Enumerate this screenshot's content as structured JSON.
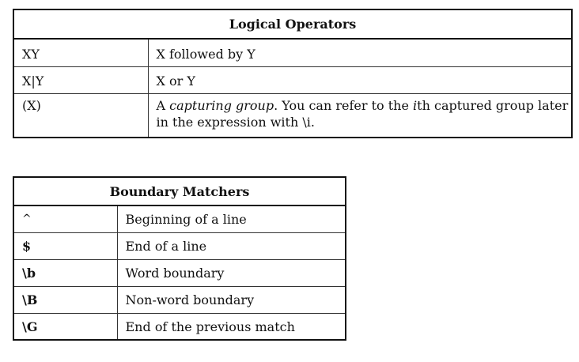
{
  "logical_operators": {
    "title": "Logical Operators",
    "rows": [
      {
        "construct": "XY",
        "description": "X followed by Y"
      },
      {
        "construct": "X|Y",
        "description": "X or Y"
      },
      {
        "construct": "(X)",
        "description_parts": {
          "prefix": "A ",
          "emphasis": "capturing group",
          "middle": ". You can refer to the ",
          "ith_i": "i",
          "rest": "th captured group later in the expression with \\i."
        }
      }
    ]
  },
  "boundary_matchers": {
    "title": "Boundary Matchers",
    "rows": [
      {
        "construct": "^",
        "description": "Beginning of a line"
      },
      {
        "construct": "$",
        "description": "End of a line"
      },
      {
        "construct": "\\b",
        "description": "Word boundary"
      },
      {
        "construct": "\\B",
        "description": "Non-word boundary"
      },
      {
        "construct": "\\G",
        "description": "End of the previous match"
      }
    ]
  }
}
